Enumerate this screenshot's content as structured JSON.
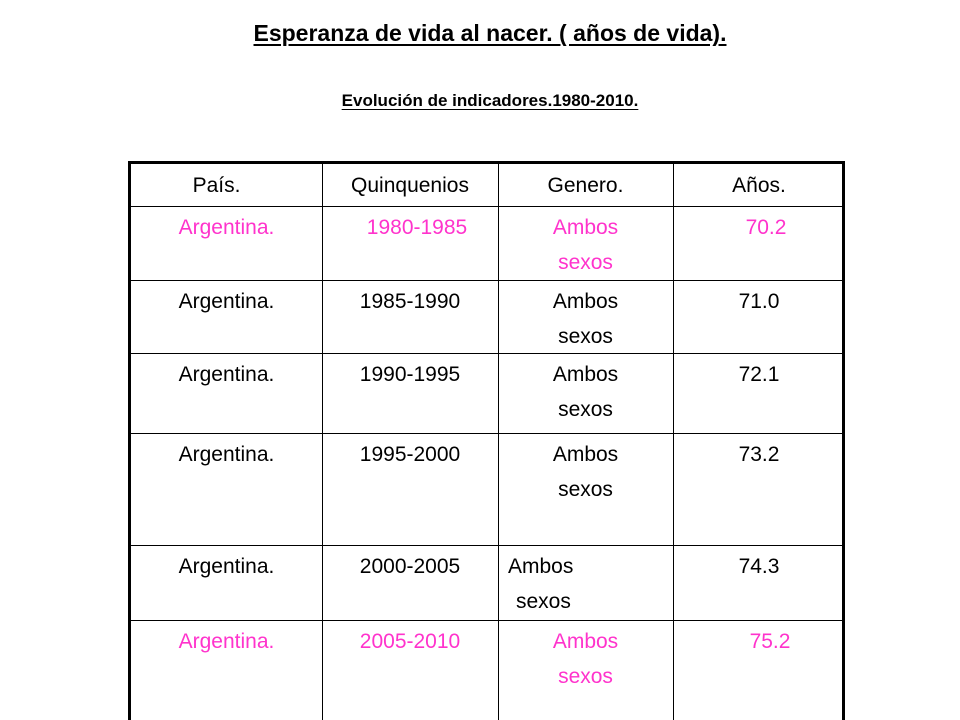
{
  "title": "Esperanza de vida al nacer. ( años de vida).",
  "subtitle": "Evolución de indicadores.1980-2010.",
  "table": {
    "headers": [
      "País.",
      "Quinquenios",
      "Genero.",
      "Años."
    ],
    "rows": [
      {
        "pais": "Argentina.",
        "quinquenio": "1980-1985",
        "genero_1": "Ambos",
        "genero_2": "sexos",
        "anos": "70.2",
        "highlight": true
      },
      {
        "pais": "Argentina.",
        "quinquenio": "1985-1990",
        "genero_1": "Ambos",
        "genero_2": "sexos",
        "anos": "71.0",
        "highlight": false
      },
      {
        "pais": "Argentina.",
        "quinquenio": "1990-1995",
        "genero_1": "Ambos",
        "genero_2": "sexos",
        "anos": "72.1",
        "highlight": false
      },
      {
        "pais": "Argentina.",
        "quinquenio": "1995-2000",
        "genero_1": "Ambos",
        "genero_2": "sexos",
        "anos": "73.2",
        "highlight": false
      },
      {
        "pais": "Argentina.",
        "quinquenio": "2000-2005",
        "genero_1": "Ambos",
        "genero_2": "sexos",
        "anos": "74.3",
        "highlight": false
      },
      {
        "pais": "Argentina.",
        "quinquenio": "2005-2010",
        "genero_1": "Ambos",
        "genero_2": "sexos",
        "anos": "75.2",
        "highlight": true
      }
    ]
  },
  "colors": {
    "highlight": "#ff33cc",
    "text": "#000000"
  }
}
